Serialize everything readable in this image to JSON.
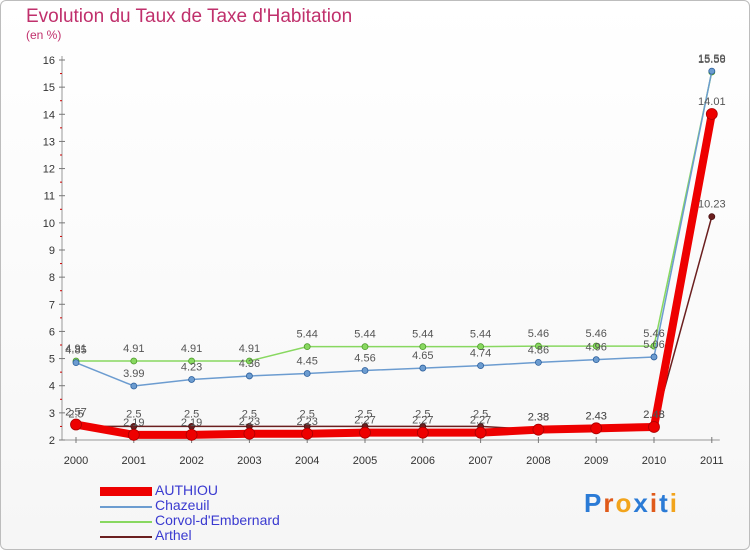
{
  "title": "Evolution du Taux de Taxe d'Habitation",
  "unit": "(en %)",
  "logo": "Proxiti",
  "chart_data": {
    "type": "line",
    "title": "Evolution du Taux de Taxe d'Habitation",
    "ylabel": "(en %)",
    "xlabel": "",
    "ylim": [
      2,
      16
    ],
    "yticks": [
      2,
      3,
      4,
      5,
      6,
      7,
      8,
      9,
      10,
      11,
      12,
      13,
      14,
      15,
      16
    ],
    "grid": false,
    "legend": "bottom-left",
    "categories": [
      "2000",
      "2001",
      "2002",
      "2003",
      "2004",
      "2005",
      "2006",
      "2007",
      "2008",
      "2009",
      "2010",
      "2011"
    ],
    "series": [
      {
        "name": "Arthel",
        "color": "#6b1f1f",
        "values": [
          2.5,
          2.5,
          2.5,
          2.5,
          2.5,
          2.5,
          2.5,
          2.5,
          2.38,
          2.43,
          2.48,
          10.23
        ],
        "labels": [
          "2.5",
          "2.5",
          "2.5",
          "2.5",
          "2.5",
          "2.5",
          "2.5",
          "2.5",
          "2.38",
          "2.43",
          "2.48",
          "10.23"
        ]
      },
      {
        "name": "Corvol-d'Embernard",
        "color": "#88d860",
        "values": [
          4.91,
          4.91,
          4.91,
          4.91,
          5.44,
          5.44,
          5.44,
          5.44,
          5.46,
          5.46,
          5.46,
          15.56
        ],
        "labels": [
          "4.91",
          "4.91",
          "4.91",
          "4.91",
          "5.44",
          "5.44",
          "5.44",
          "5.44",
          "5.46",
          "5.46",
          "5.46",
          "15.56"
        ]
      },
      {
        "name": "Chazeuil",
        "color": "#6c9cd0",
        "values": [
          4.85,
          3.99,
          4.23,
          4.36,
          4.45,
          4.56,
          4.65,
          4.74,
          4.86,
          4.96,
          5.06,
          15.59
        ],
        "labels": [
          "4.85",
          "3.99",
          "4.23",
          "4.36",
          "4.45",
          "4.56",
          "4.65",
          "4.74",
          "4.86",
          "4.96",
          "5.06",
          "15.59"
        ]
      },
      {
        "name": "AUTHIOU",
        "color": "#ee0000",
        "values": [
          2.57,
          2.19,
          2.19,
          2.23,
          2.23,
          2.27,
          2.27,
          2.27,
          2.38,
          2.43,
          2.48,
          14.01
        ],
        "labels": [
          "2.57",
          "2.19",
          "2.19",
          "2.23",
          "2.23",
          "2.27",
          "2.27",
          "2.27",
          "2.38",
          "2.43",
          "2.48",
          "14.01"
        ]
      }
    ]
  },
  "legend_items": [
    {
      "label": "AUTHIOU",
      "color": "#ee0000"
    },
    {
      "label": "Chazeuil",
      "color": "#6c9cd0"
    },
    {
      "label": "Corvol-d'Embernard",
      "color": "#88d860"
    },
    {
      "label": "Arthel",
      "color": "#6b1f1f"
    }
  ]
}
